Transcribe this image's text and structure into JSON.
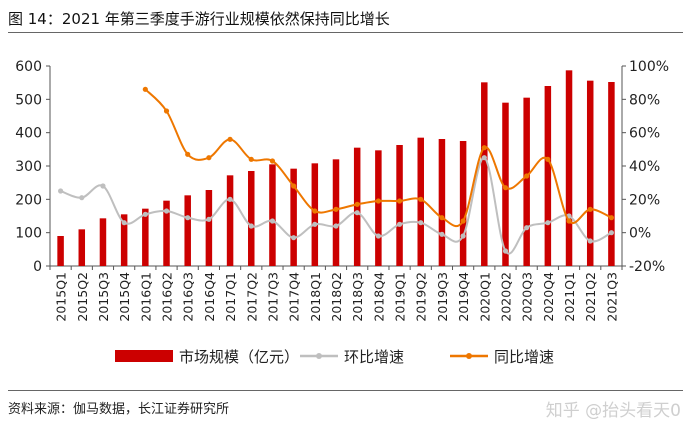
{
  "figure": {
    "title": "图 14：2021 年第三季度手游行业规模依然保持同比增长",
    "source": "资料来源：伽马数据，长江证券研究所",
    "watermark": "知乎 @抬头看天0"
  },
  "chart_data": {
    "type": "bar+line",
    "categories": [
      "2015Q1",
      "2015Q2",
      "2015Q3",
      "2015Q4",
      "2016Q1",
      "2016Q2",
      "2016Q3",
      "2016Q4",
      "2017Q1",
      "2017Q2",
      "2017Q3",
      "2017Q4",
      "2018Q1",
      "2018Q2",
      "2018Q3",
      "2018Q4",
      "2019Q1",
      "2019Q2",
      "2019Q3",
      "2019Q4",
      "2020Q1",
      "2020Q2",
      "2020Q3",
      "2020Q4",
      "2021Q1",
      "2021Q2",
      "2021Q3"
    ],
    "y_left": {
      "min": 0,
      "max": 600,
      "ticks": [
        0,
        100,
        200,
        300,
        400,
        500,
        600
      ]
    },
    "y_right": {
      "min": -20,
      "max": 100,
      "ticks": [
        "-20%",
        "0%",
        "20%",
        "40%",
        "60%",
        "80%",
        "100%"
      ]
    },
    "series": [
      {
        "name": "市场规模（亿元）",
        "type": "bar",
        "axis": "left",
        "color": "#cc0000",
        "values": [
          90,
          110,
          143,
          155,
          172,
          196,
          212,
          228,
          272,
          285,
          305,
          292,
          308,
          320,
          355,
          347,
          363,
          385,
          381,
          375,
          551,
          490,
          505,
          540,
          587,
          556,
          552
        ]
      },
      {
        "name": "环比增速",
        "type": "line",
        "axis": "right",
        "color": "#bfbfbf",
        "values": [
          25,
          21,
          28,
          6,
          11,
          13,
          9,
          8,
          20,
          4,
          7,
          -3,
          5,
          4,
          12,
          -2,
          5,
          6,
          -1,
          -2,
          45,
          -11,
          3,
          6,
          10,
          -5,
          0
        ]
      },
      {
        "name": "同比增速",
        "type": "line",
        "axis": "right",
        "color": "#ee7700",
        "values": [
          null,
          null,
          null,
          null,
          86,
          73,
          47,
          45,
          56,
          44,
          43,
          28,
          13,
          14,
          17,
          19,
          19,
          20,
          9,
          7,
          51,
          27,
          34,
          44,
          7,
          14,
          9
        ]
      }
    ],
    "legend_position": "bottom",
    "grid": false
  }
}
